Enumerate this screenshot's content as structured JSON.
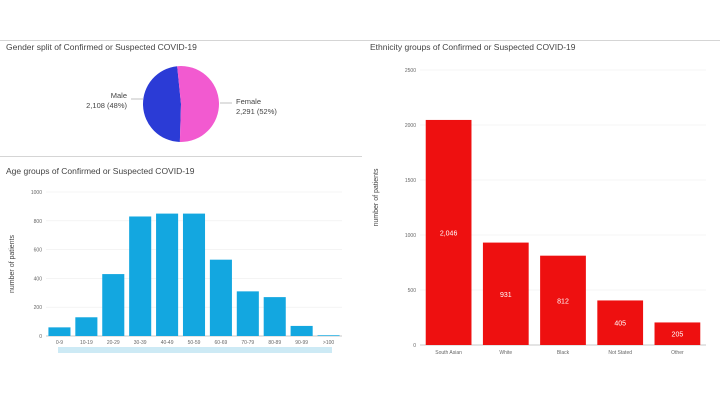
{
  "colors": {
    "male": "#2b3bd6",
    "female": "#f25ad0",
    "age_bar": "#13a7e0",
    "ethnicity_bar": "#ee1010",
    "scroll_track": "#cdeaf5"
  },
  "chart_data": [
    {
      "type": "pie",
      "title": "Gender split of Confirmed or Suspected COVID-19",
      "slices": [
        {
          "label": "Male",
          "value": 2108,
          "display_value": "2,108",
          "percent": "(48%)"
        },
        {
          "label": "Female",
          "value": 2291,
          "display_value": "2,291",
          "percent": "(52%)"
        }
      ]
    },
    {
      "type": "bar",
      "title": "Age groups of Confirmed or Suspected COVID-19",
      "xlabel": "",
      "ylabel": "number of patients",
      "ylim": [
        0,
        1000
      ],
      "yticks": [
        "0",
        "200",
        "400",
        "600",
        "800",
        "1000"
      ],
      "categories": [
        "0-9",
        "10-19",
        "20-29",
        "30-39",
        "40-49",
        "50-59",
        "60-69",
        "70-79",
        "80-89",
        "90-99",
        ">100"
      ],
      "values": [
        60,
        130,
        430,
        830,
        850,
        850,
        530,
        310,
        270,
        70,
        5
      ]
    },
    {
      "type": "bar",
      "title": "Ethnicity groups of Confirmed or Suspected COVID-19",
      "xlabel": "",
      "ylabel": "number of patients",
      "ylim": [
        0,
        2500
      ],
      "yticks": [
        "0",
        "500",
        "1000",
        "1500",
        "2000",
        "2500"
      ],
      "categories": [
        "South Asian",
        "White",
        "Black",
        "Not Stated",
        "Other"
      ],
      "values": [
        2046,
        931,
        812,
        405,
        205
      ],
      "value_labels": [
        "2,046",
        "931",
        "812",
        "405",
        "205"
      ]
    }
  ]
}
